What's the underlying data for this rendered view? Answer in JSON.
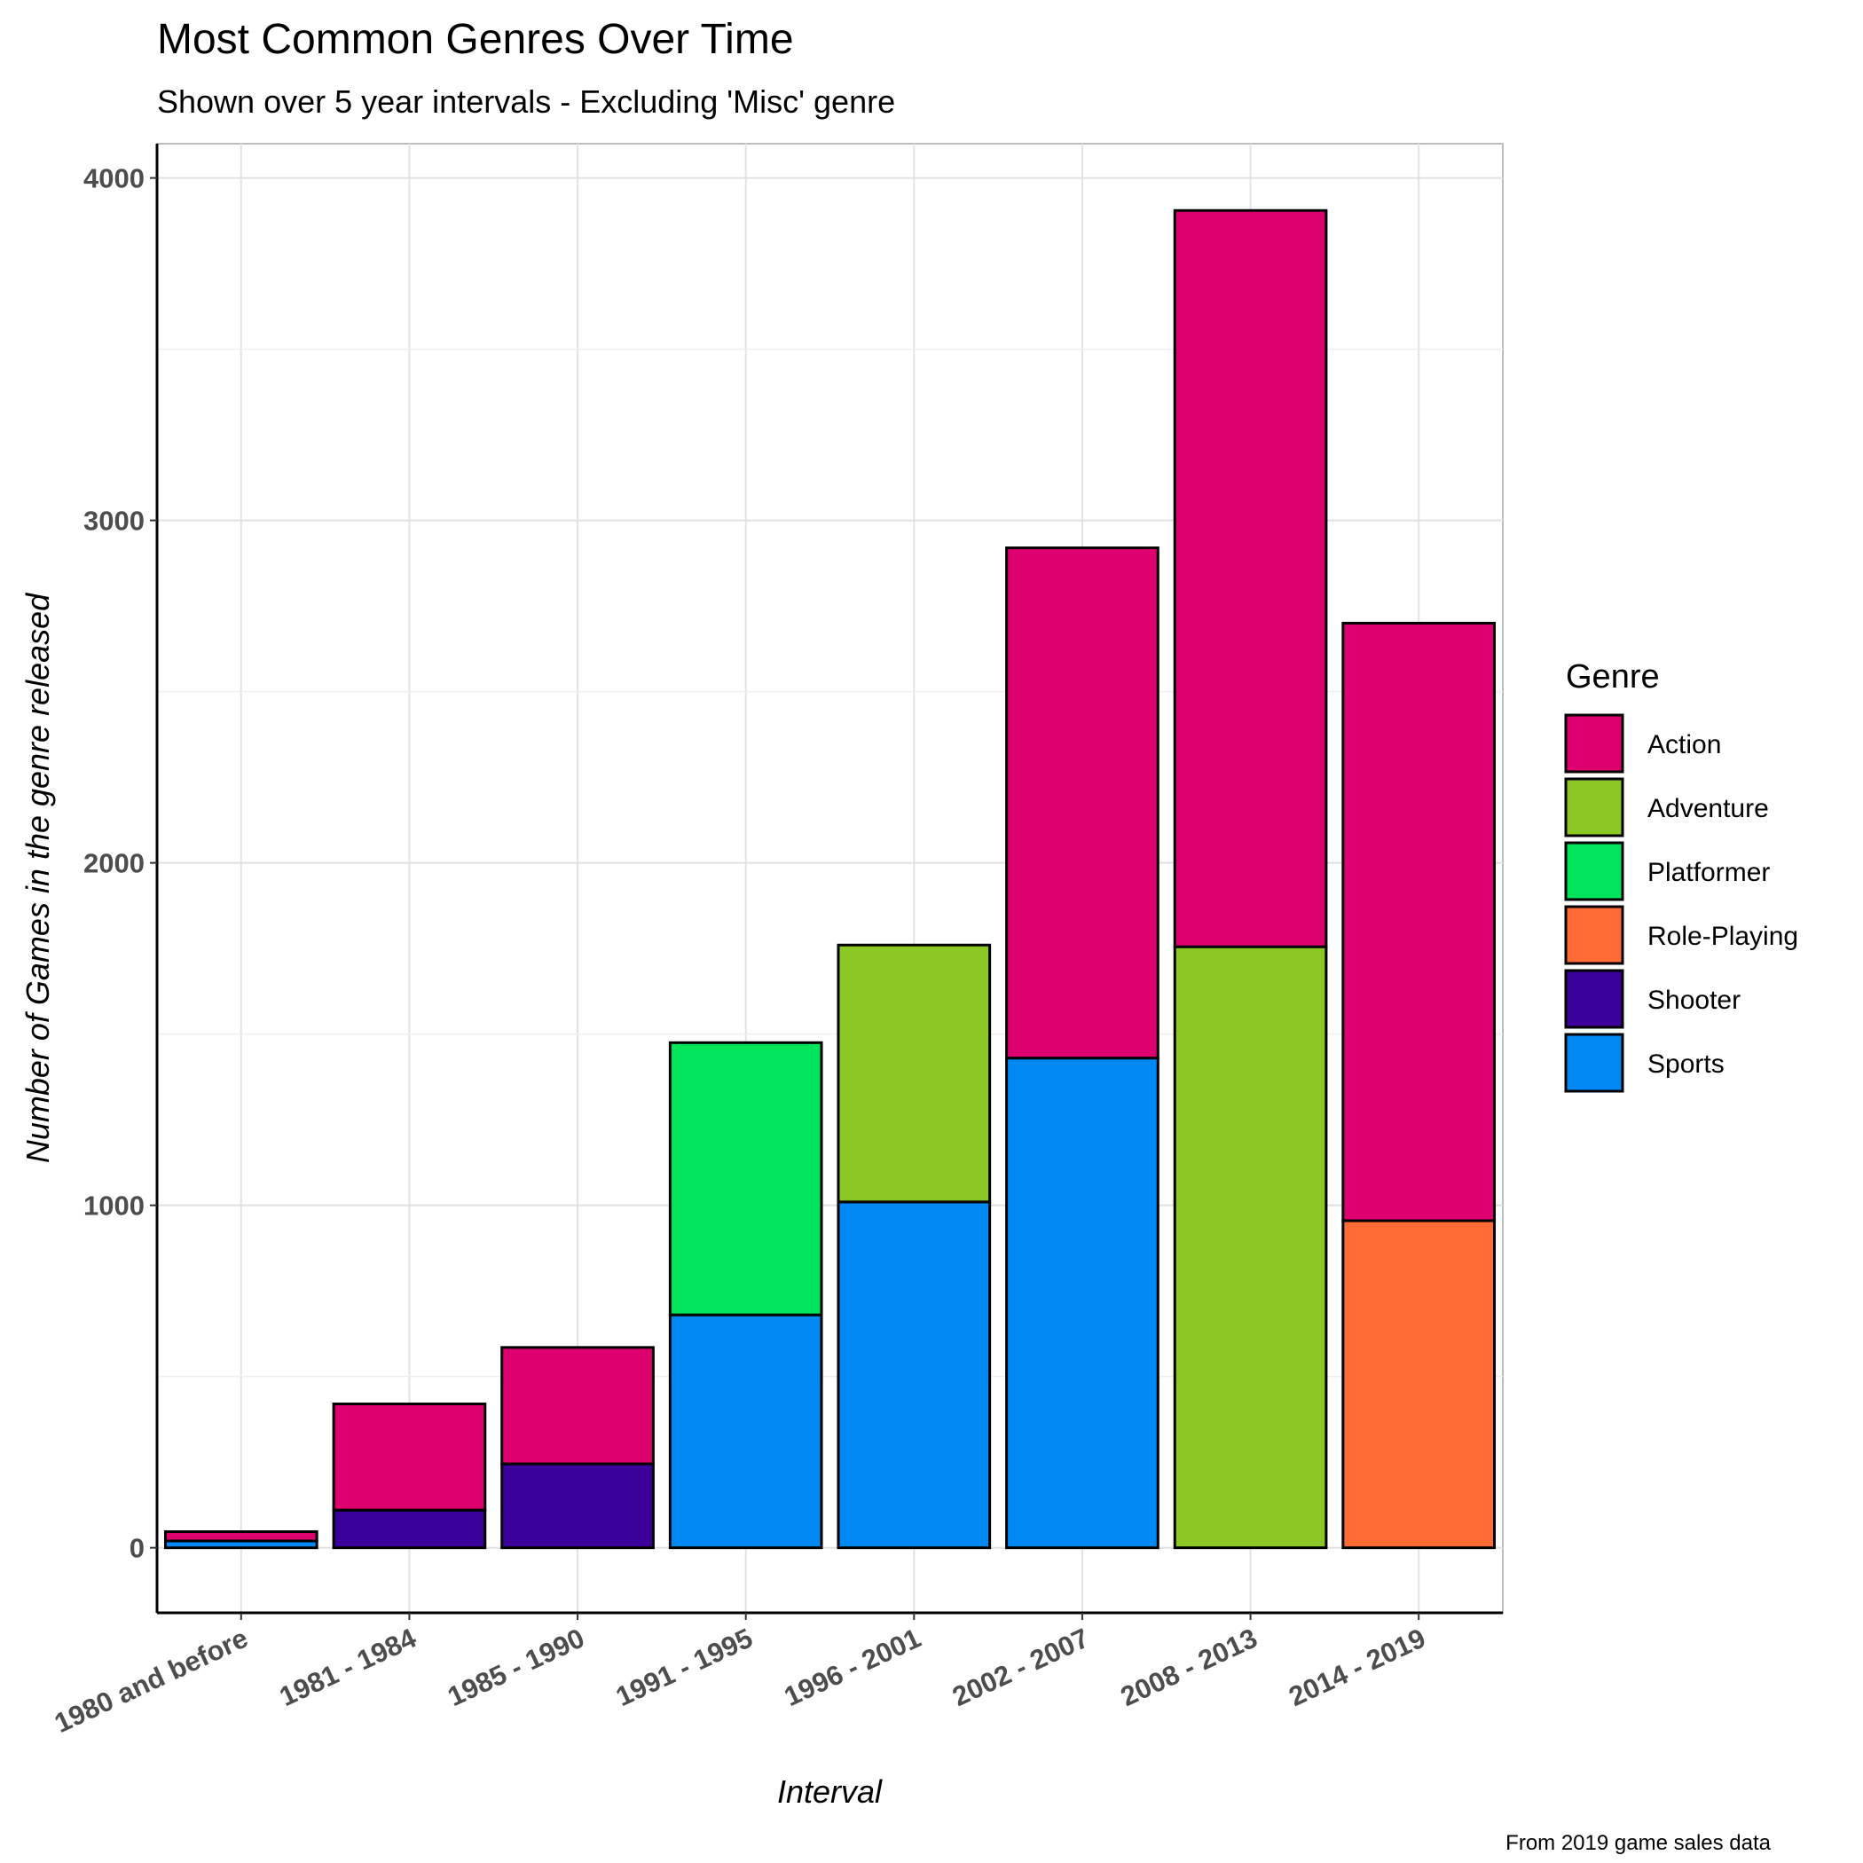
{
  "chart_data": {
    "type": "bar",
    "stacked": true,
    "title": "Most Common Genres Over Time",
    "subtitle": "Shown over 5 year intervals - Excluding 'Misc' genre",
    "xlabel": "Interval",
    "ylabel": "Number of Games in the genre released",
    "caption": "From 2019 game sales data",
    "legend_title": "Genre",
    "legend_position": "right",
    "grid": true,
    "ylim": [
      -190,
      4100
    ],
    "yticks": [
      0,
      1000,
      2000,
      3000,
      4000
    ],
    "categories": [
      "1980 and before",
      "1981 - 1984",
      "1985 - 1990",
      "1991 - 1995",
      "1996 - 2001",
      "2002 - 2007",
      "2008 - 2013",
      "2014 - 2019"
    ],
    "series": [
      {
        "name": "Action",
        "color": "#DE006E",
        "values": [
          27,
          310,
          340,
          0,
          0,
          1490,
          2150,
          1745
        ]
      },
      {
        "name": "Adventure",
        "color": "#8CC825",
        "values": [
          0,
          0,
          0,
          0,
          750,
          0,
          1755,
          0
        ]
      },
      {
        "name": "Platformer",
        "color": "#00E45C",
        "values": [
          0,
          0,
          0,
          795,
          0,
          0,
          0,
          0
        ]
      },
      {
        "name": "Role-Playing",
        "color": "#FF6B35",
        "values": [
          0,
          0,
          0,
          0,
          0,
          0,
          0,
          955
        ]
      },
      {
        "name": "Shooter",
        "color": "#3B0099",
        "values": [
          0,
          110,
          245,
          0,
          0,
          0,
          0,
          0
        ]
      },
      {
        "name": "Sports",
        "color": "#0088F5",
        "values": [
          20,
          0,
          0,
          680,
          1010,
          1430,
          0,
          0
        ]
      }
    ],
    "stack_order": [
      "Sports",
      "Shooter",
      "Role-Playing",
      "Platformer",
      "Adventure",
      "Action"
    ]
  }
}
